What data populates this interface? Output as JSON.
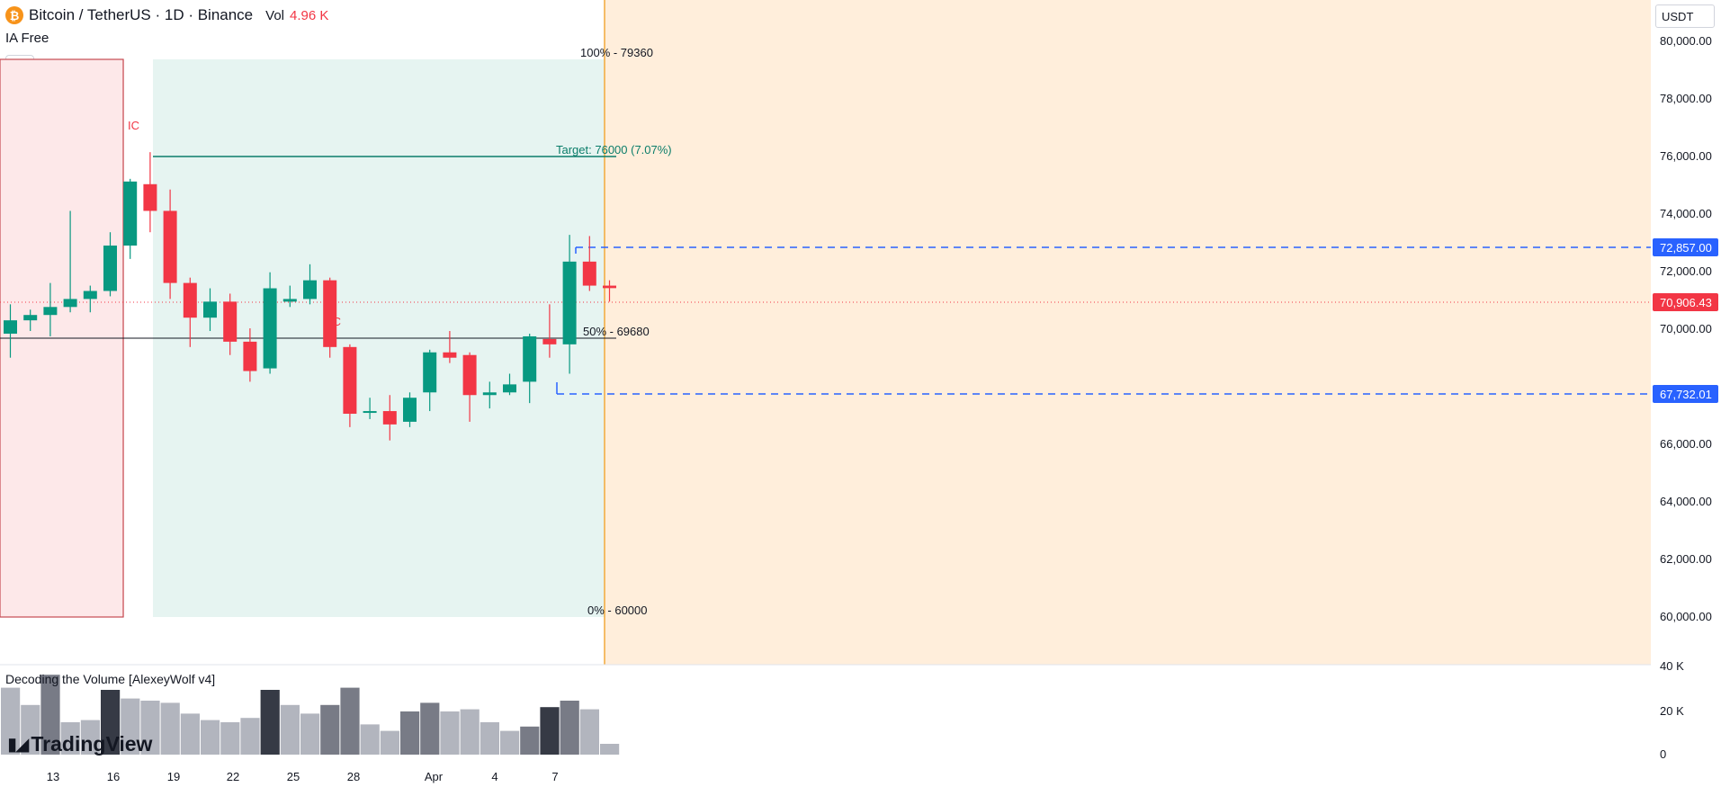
{
  "header": {
    "symbol": "Bitcoin / TetherUS · 1D · Binance",
    "coin_glyph": "₿",
    "vol_label": "Vol",
    "vol_value": "4.96 K"
  },
  "indicator_label": "IA Free",
  "collapse_glyph": "⌃",
  "currency_button": "USDT",
  "lower_indicator_title": "Decoding the Volume [AlexeyWolf v4]",
  "watermark": "TradingView",
  "price_axis": {
    "ticks": [
      "80,000.00",
      "78,000.00",
      "76,000.00",
      "74,000.00",
      "72,000.00",
      "70,000.00",
      "66,000.00",
      "64,000.00",
      "62,000.00",
      "60,000.00"
    ],
    "label_high": {
      "text": "72,857.00",
      "color": "#2962ff"
    },
    "label_last": {
      "text": "70,906.43",
      "color": "#f23645"
    },
    "label_low": {
      "text": "67,732.01",
      "color": "#2962ff"
    }
  },
  "volume_axis": {
    "ticks": [
      "40 K",
      "20 K",
      "0"
    ]
  },
  "time_axis": {
    "ticks": [
      "13",
      "16",
      "19",
      "22",
      "25",
      "28",
      "Apr",
      "4",
      "7"
    ]
  },
  "annotations": {
    "ic_1": "IC",
    "ic_2": "IC",
    "fib_100": "100% - 79360",
    "fib_50": "50% - 69680",
    "fib_0": "0% - 60000",
    "target": "Target: 76000 (7.07%)"
  },
  "colors": {
    "up": "#089981",
    "down": "#f23645",
    "zone_red": "#fde8e9",
    "zone_green": "#e6f4f1",
    "zone_orange": "#ffeedb",
    "level_blue": "#2962ff",
    "orange_line": "#f2a93b"
  },
  "chart_data": {
    "type": "candlestick",
    "symbol": "BTCUSDT",
    "timeframe": "1D",
    "series": [
      {
        "date": "Mar 11",
        "open": 69200,
        "high": 70300,
        "low": 68300,
        "close": 69700
      },
      {
        "date": "Mar 12",
        "open": 69700,
        "high": 70100,
        "low": 69300,
        "close": 69900
      },
      {
        "date": "Mar 13",
        "open": 69900,
        "high": 71100,
        "low": 69100,
        "close": 70200
      },
      {
        "date": "Mar 14",
        "open": 70200,
        "high": 73800,
        "low": 70000,
        "close": 70500
      },
      {
        "date": "Mar 15",
        "open": 70500,
        "high": 71000,
        "low": 70000,
        "close": 70800
      },
      {
        "date": "Mar 16",
        "open": 70800,
        "high": 73000,
        "low": 70600,
        "close": 72500
      },
      {
        "date": "Mar 17",
        "open": 72500,
        "high": 75000,
        "low": 72000,
        "close": 74900
      },
      {
        "date": "Mar 18",
        "open": 74800,
        "high": 76000,
        "low": 73000,
        "close": 73800
      },
      {
        "date": "Mar 19",
        "open": 73800,
        "high": 74600,
        "low": 70500,
        "close": 71100
      },
      {
        "date": "Mar 20",
        "open": 71100,
        "high": 71300,
        "low": 68700,
        "close": 69800
      },
      {
        "date": "Mar 21",
        "open": 69800,
        "high": 70900,
        "low": 69300,
        "close": 70400
      },
      {
        "date": "Mar 22",
        "open": 70400,
        "high": 70700,
        "low": 68400,
        "close": 68900
      },
      {
        "date": "Mar 23",
        "open": 68900,
        "high": 69400,
        "low": 67400,
        "close": 67800
      },
      {
        "date": "Mar 24",
        "open": 67900,
        "high": 71500,
        "low": 67700,
        "close": 70900
      },
      {
        "date": "Mar 25",
        "open": 70400,
        "high": 71000,
        "low": 70200,
        "close": 70500
      },
      {
        "date": "Mar 26",
        "open": 70500,
        "high": 71800,
        "low": 70300,
        "close": 71200
      },
      {
        "date": "Mar 27",
        "open": 71200,
        "high": 71300,
        "low": 68300,
        "close": 68700
      },
      {
        "date": "Mar 28",
        "open": 68700,
        "high": 68800,
        "low": 65700,
        "close": 66200
      },
      {
        "date": "Mar 29",
        "open": 66300,
        "high": 66800,
        "low": 66000,
        "close": 66300
      },
      {
        "date": "Mar 30",
        "open": 66300,
        "high": 66900,
        "low": 65200,
        "close": 65800
      },
      {
        "date": "Mar 31",
        "open": 65900,
        "high": 67000,
        "low": 65700,
        "close": 66800
      },
      {
        "date": "Apr 1",
        "open": 67000,
        "high": 68600,
        "low": 66300,
        "close": 68500
      },
      {
        "date": "Apr 2",
        "open": 68500,
        "high": 69300,
        "low": 68100,
        "close": 68300
      },
      {
        "date": "Apr 3",
        "open": 68400,
        "high": 68500,
        "low": 65900,
        "close": 66900
      },
      {
        "date": "Apr 4",
        "open": 66900,
        "high": 67400,
        "low": 66400,
        "close": 67000
      },
      {
        "date": "Apr 5",
        "open": 67000,
        "high": 67700,
        "low": 66900,
        "close": 67300
      },
      {
        "date": "Apr 6",
        "open": 67400,
        "high": 69200,
        "low": 66600,
        "close": 69100
      },
      {
        "date": "Apr 7",
        "open": 69000,
        "high": 70300,
        "low": 68300,
        "close": 68800
      },
      {
        "date": "Apr 8",
        "open": 68800,
        "high": 72900,
        "low": 67700,
        "close": 71900
      },
      {
        "date": "Apr 9",
        "open": 71900,
        "high": 72857,
        "low": 70800,
        "close": 71000
      },
      {
        "date": "Apr 10",
        "open": 71000,
        "high": 71200,
        "low": 70400,
        "close": 70906
      }
    ],
    "volume": [
      31,
      23,
      37,
      15,
      16,
      30,
      26,
      25,
      24,
      19,
      16,
      15,
      17,
      30,
      23,
      19,
      23,
      31,
      14,
      11,
      20,
      24,
      20,
      21,
      15,
      11,
      13,
      22,
      25,
      21,
      5
    ],
    "volume_shade": [
      "l",
      "l",
      "m",
      "l",
      "l",
      "d",
      "l",
      "l",
      "l",
      "l",
      "l",
      "l",
      "l",
      "d",
      "l",
      "l",
      "m",
      "m",
      "l",
      "l",
      "m",
      "m",
      "l",
      "l",
      "l",
      "l",
      "m",
      "d",
      "m",
      "l",
      "l"
    ],
    "y_price_range": [
      56800,
      81700
    ],
    "y_volume_range": [
      0,
      40
    ],
    "levels": {
      "fib_100": 79360,
      "fib_50": 69680,
      "fib_0": 60000,
      "target": 76000,
      "range_high": 72857,
      "range_low": 67732.01,
      "last_price": 70906.43
    }
  }
}
